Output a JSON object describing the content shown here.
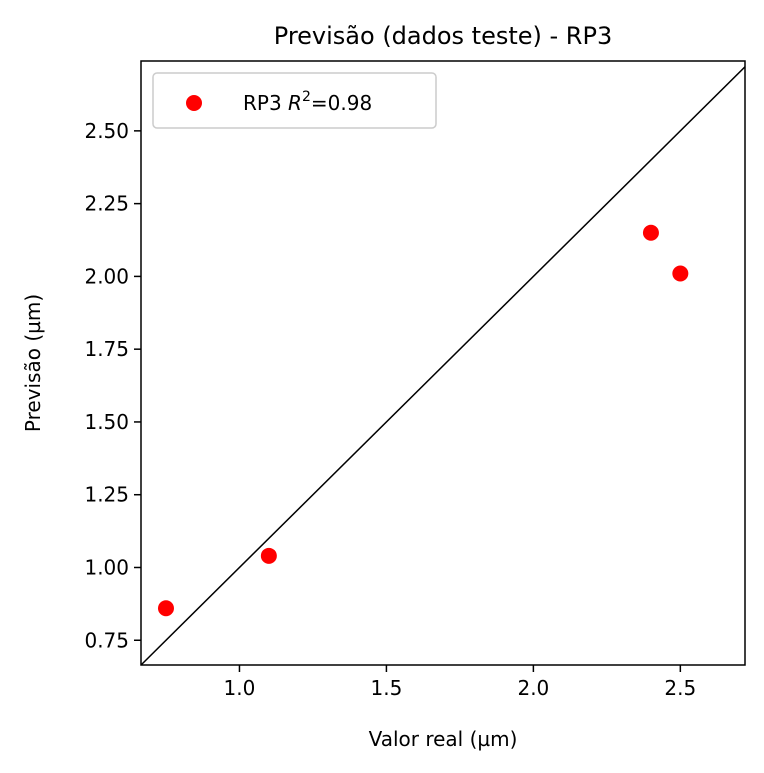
{
  "chart_data": {
    "type": "scatter",
    "title": "Previsão (dados teste) - RP3",
    "xlabel": "Valor real (µm)",
    "ylabel": "Previsão (µm)",
    "xlim": [
      0.665,
      2.72
    ],
    "ylim": [
      0.665,
      2.74
    ],
    "xticks": [
      1.0,
      1.5,
      2.0,
      2.5
    ],
    "xtick_labels": [
      "1.0",
      "1.5",
      "2.0",
      "2.5"
    ],
    "yticks": [
      0.75,
      1.0,
      1.25,
      1.5,
      1.75,
      2.0,
      2.25,
      2.5
    ],
    "ytick_labels": [
      "0.75",
      "1.00",
      "1.25",
      "1.50",
      "1.75",
      "2.00",
      "2.25",
      "2.50"
    ],
    "grid": false,
    "legend_position": "top-left",
    "series": [
      {
        "name": "RP3",
        "legend_label": {
          "prefix": "RP3 ",
          "symbol": "R",
          "exponent": "2",
          "suffix": "=0.98"
        },
        "color": "#ff0000",
        "points": [
          {
            "x": 0.75,
            "y": 0.86
          },
          {
            "x": 1.1,
            "y": 1.04
          },
          {
            "x": 2.4,
            "y": 2.15
          },
          {
            "x": 2.5,
            "y": 2.01
          }
        ]
      }
    ],
    "reference_line": {
      "type": "identity",
      "color": "#000000"
    }
  }
}
